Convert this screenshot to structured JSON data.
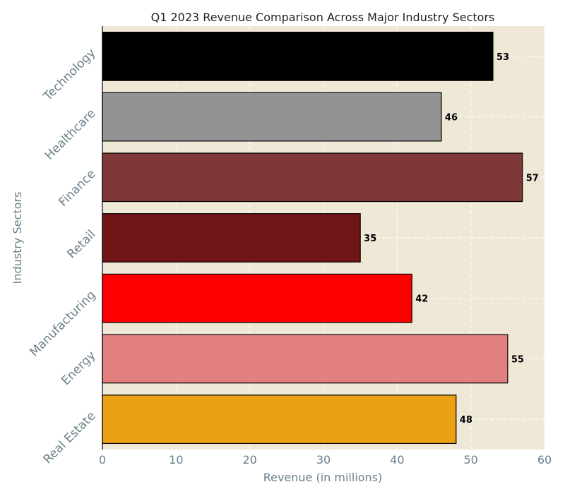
{
  "chart_data": {
    "type": "bar",
    "orientation": "horizontal",
    "title": "Q1 2023 Revenue Comparison Across Major Industry Sectors",
    "xlabel": "Revenue (in millions)",
    "ylabel": "Industry Sectors",
    "xlim": [
      0,
      60
    ],
    "xticks": [
      "0",
      "10",
      "20",
      "30",
      "40",
      "50",
      "60"
    ],
    "grid": true,
    "categories": [
      "Technology",
      "Healthcare",
      "Finance",
      "Retail",
      "Manufacturing",
      "Energy",
      "Real Estate"
    ],
    "values": [
      53,
      46,
      57,
      35,
      42,
      55,
      48
    ],
    "colors": [
      "#000000",
      "#939393",
      "#7f3738",
      "#711516",
      "#ff0000",
      "#e27f7f",
      "#eba114"
    ],
    "plot_background": "#efe8d6"
  }
}
